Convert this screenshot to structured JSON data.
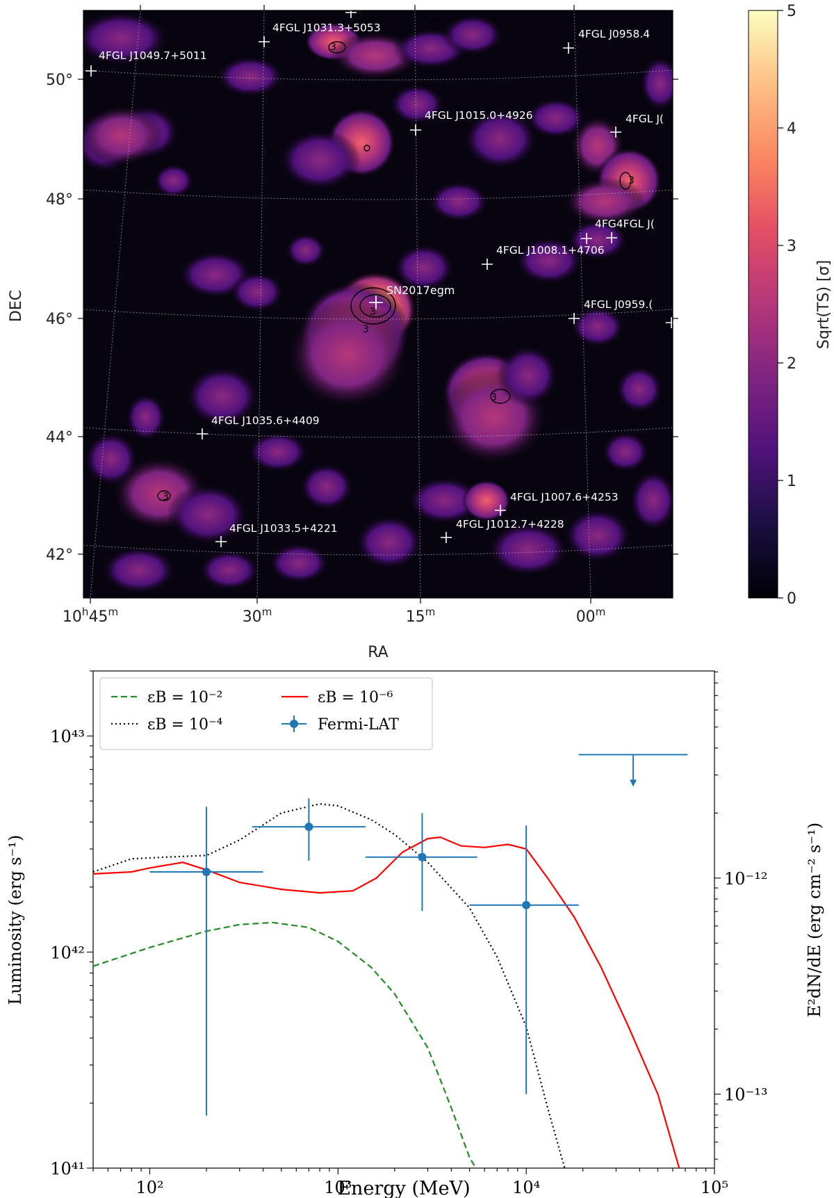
{
  "chart_data": [
    {
      "type": "heatmap",
      "xlabel": "RA",
      "ylabel": "DEC",
      "x_ticks": [
        {
          "h": "10",
          "m": "45"
        },
        {
          "h": "",
          "m": "30"
        },
        {
          "h": "",
          "m": "15"
        },
        {
          "h": "",
          "m": "00"
        }
      ],
      "y_ticks": [
        "50°",
        "48°",
        "46°",
        "44°",
        "42°"
      ],
      "colorbar": {
        "label": "Sqrt(TS) [σ]",
        "ticks": [
          "0",
          "1",
          "2",
          "3",
          "4",
          "5"
        ],
        "range": [
          0,
          5
        ],
        "colormap": "magma"
      },
      "grid": true,
      "contour_level": "3",
      "target": {
        "label": "SN2017egm"
      },
      "sources": [
        {
          "label": "4FGL J1049.7+5011"
        },
        {
          "label": "4FGL J1031.3+5053"
        },
        {
          "label": "4FGL J0958.4"
        },
        {
          "label": "4FGL J1015.0+4926"
        },
        {
          "label": "4FGL J("
        },
        {
          "label": "4FG4FGL J("
        },
        {
          "label": "4FGL J1008.1+4706"
        },
        {
          "label": "4FGL J0959.("
        },
        {
          "label": "4FGL J1035.6+4409"
        },
        {
          "label": "4FGL J1007.6+4253"
        },
        {
          "label": "4FGL J1012.7+4228"
        },
        {
          "label": "4FGL J1033.5+4221"
        }
      ]
    },
    {
      "type": "line",
      "xlabel": "Energy (MeV)",
      "ylabel": "Luminosity (erg s⁻¹)",
      "ylabel_right": "E²dN/dE (erg cm⁻² s⁻¹)",
      "xscale": "log",
      "yscale": "log",
      "xlim": [
        50,
        100000
      ],
      "ylim": [
        1e+41,
        2e+43
      ],
      "x_tick_labels": [
        "10²",
        "10³",
        "10⁴",
        "10⁵"
      ],
      "y_tick_labels": [
        "10⁴¹",
        "10⁴²",
        "10⁴³"
      ],
      "y_right_tick_labels": [
        "10⁻¹³",
        "10⁻¹²"
      ],
      "legend_position": "top-left",
      "series": [
        {
          "name": "εB = 10⁻²",
          "style": "dashed",
          "color": "#228b22",
          "points": [
            [
              50,
              8.6e+41
            ],
            [
              100,
              1.05e+42
            ],
            [
              200,
              1.25e+42
            ],
            [
              300,
              1.34e+42
            ],
            [
              450,
              1.37e+42
            ],
            [
              700,
              1.3e+42
            ],
            [
              1000,
              1.12e+42
            ],
            [
              1500,
              8.5e+41
            ],
            [
              2000,
              6.4e+41
            ],
            [
              3000,
              3.6e+41
            ],
            [
              4000,
              1.9e+41
            ],
            [
              5000,
              1.12e+41
            ],
            [
              5400,
              1e+41
            ]
          ]
        },
        {
          "name": "εB = 10⁻⁴",
          "style": "dotted",
          "color": "#000000",
          "points": [
            [
              50,
              2.35e+42
            ],
            [
              80,
              2.7e+42
            ],
            [
              120,
              2.75e+42
            ],
            [
              200,
              2.8e+42
            ],
            [
              300,
              3.3e+42
            ],
            [
              500,
              4.4e+42
            ],
            [
              800,
              4.85e+42
            ],
            [
              1000,
              4.75e+42
            ],
            [
              1500,
              4.1e+42
            ],
            [
              2000,
              3.5e+42
            ],
            [
              3000,
              2.6e+42
            ],
            [
              5000,
              1.6e+42
            ],
            [
              7000,
              9.5e+41
            ],
            [
              10000,
              4.5e+41
            ],
            [
              13000,
              1.9e+41
            ],
            [
              16000,
              1e+41
            ]
          ]
        },
        {
          "name": "εB = 10⁻⁶",
          "style": "solid",
          "color": "#ff0000",
          "points": [
            [
              50,
              2.3e+42
            ],
            [
              80,
              2.35e+42
            ],
            [
              100,
              2.45e+42
            ],
            [
              150,
              2.6e+42
            ],
            [
              200,
              2.4e+42
            ],
            [
              300,
              2.1e+42
            ],
            [
              500,
              1.95e+42
            ],
            [
              800,
              1.88e+42
            ],
            [
              1200,
              1.92e+42
            ],
            [
              1600,
              2.2e+42
            ],
            [
              2200,
              2.9e+42
            ],
            [
              3000,
              3.35e+42
            ],
            [
              3500,
              3.4e+42
            ],
            [
              4500,
              3.1e+42
            ],
            [
              6000,
              3.05e+42
            ],
            [
              8000,
              3.15e+42
            ],
            [
              10000,
              3e+42
            ],
            [
              13000,
              2.2e+42
            ],
            [
              18000,
              1.45e+42
            ],
            [
              25000,
              8.5e+41
            ],
            [
              35000,
              4.5e+41
            ],
            [
              50000,
              2.2e+41
            ],
            [
              65000,
              1e+41
            ]
          ]
        },
        {
          "name": "Fermi-LAT",
          "style": "errorbar",
          "color": "#1f77b4",
          "points": [
            {
              "x": 200,
              "xerr": [
                100,
                400
              ],
              "y": 2.35e+42,
              "yerr": [
                1.75e+41,
                4.7e+42
              ]
            },
            {
              "x": 700,
              "xerr": [
                350,
                1400
              ],
              "y": 3.8e+42,
              "yerr": [
                2.65e+42,
                5.15e+42
              ]
            },
            {
              "x": 2800,
              "xerr": [
                1400,
                5500
              ],
              "y": 2.75e+42,
              "yerr": [
                1.55e+42,
                4.4e+42
              ]
            },
            {
              "x": 10000,
              "xerr": [
                5000,
                19000
              ],
              "y": 1.65e+42,
              "yerr": [
                2.2e+41,
                3.85e+42
              ]
            }
          ],
          "upper_limits": [
            {
              "x": 37000,
              "xerr": [
                19000,
                72000
              ],
              "y": 8.2e+42
            }
          ]
        }
      ]
    }
  ]
}
